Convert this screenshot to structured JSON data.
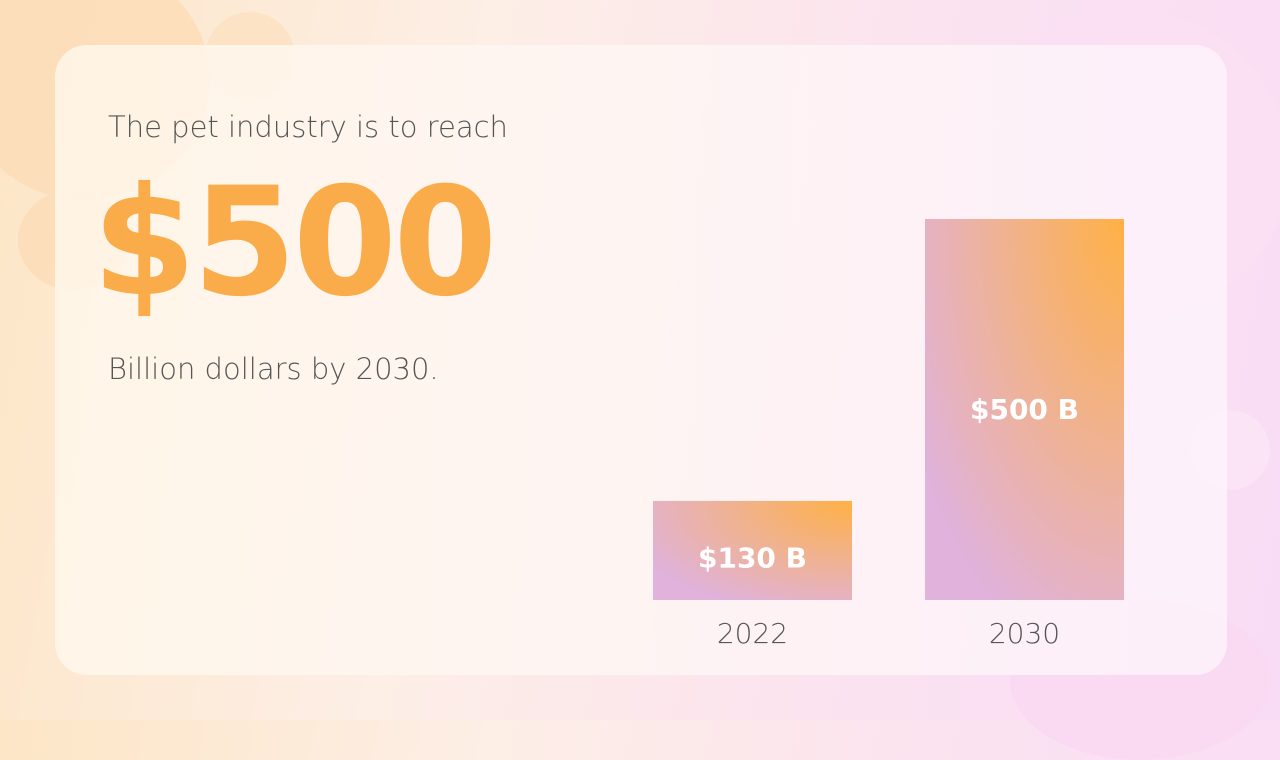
{
  "slide": {
    "lead_text": "The pet industry is to reach",
    "headline_value": "$500",
    "sub_text": "Billion dollars by 2030."
  },
  "chart_data": {
    "type": "bar",
    "categories": [
      "2022",
      "2030"
    ],
    "values": [
      130,
      500
    ],
    "data_labels": [
      "$130 B",
      "$500 B"
    ],
    "title": "",
    "xlabel": "",
    "ylabel": "",
    "ylim": [
      0,
      500
    ],
    "grid": false,
    "legend": "none",
    "colors": {
      "bar_top": "#ffb145",
      "bar_bottom": "#e0b2dc",
      "label_text": "#ffffff",
      "tick_text": "#555555"
    }
  }
}
